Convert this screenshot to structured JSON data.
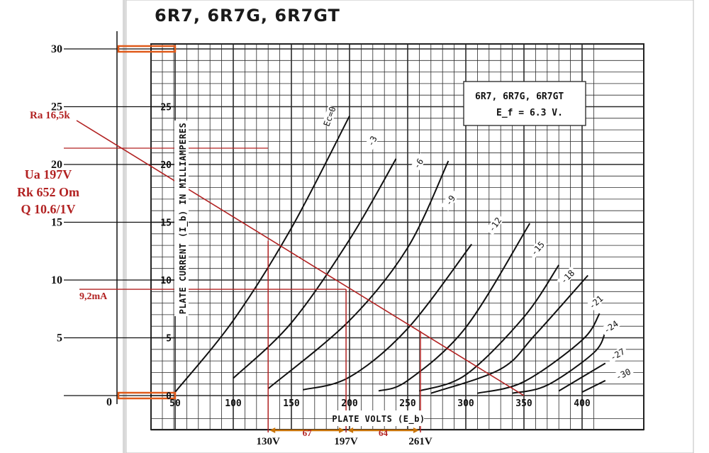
{
  "chart_data": {
    "type": "line",
    "title": "6R7, 6R7G, 6R7GT",
    "xlabel": "PLATE VOLTS (E_b)",
    "ylabel": "PLATE CURRENT (I_b) IN MILLIAMPERES",
    "xlim": [
      50,
      410
    ],
    "ylim": [
      0,
      25
    ],
    "x_ticks": [
      "50",
      "100",
      "150",
      "200",
      "250",
      "300",
      "350",
      "400"
    ],
    "y_ticks": [
      "0",
      "5",
      "10",
      "15",
      "20",
      "25"
    ],
    "grid": true,
    "info_box": {
      "line1": "6R7, 6R7G, 6R7GT",
      "line2": "E_f = 6.3 V."
    },
    "series": [
      {
        "name": "Ec=0",
        "points": [
          [
            50,
            0.3
          ],
          [
            100,
            6.5
          ],
          [
            150,
            14.5
          ],
          [
            200,
            24.2
          ]
        ]
      },
      {
        "name": "-3",
        "points": [
          [
            100,
            1.5
          ],
          [
            150,
            6.3
          ],
          [
            200,
            13.5
          ],
          [
            240,
            20.5
          ]
        ]
      },
      {
        "name": "-6",
        "points": [
          [
            130,
            0.6
          ],
          [
            200,
            6.5
          ],
          [
            250,
            12.8
          ],
          [
            285,
            20.3
          ]
        ]
      },
      {
        "name": "-9",
        "points": [
          [
            160,
            0.5
          ],
          [
            200,
            1.6
          ],
          [
            250,
            5.8
          ],
          [
            305,
            13.1
          ]
        ]
      },
      {
        "name": "-12",
        "points": [
          [
            225,
            0.4
          ],
          [
            250,
            1.3
          ],
          [
            300,
            5.9
          ],
          [
            355,
            14.9
          ]
        ]
      },
      {
        "name": "-15",
        "points": [
          [
            260,
            0.4
          ],
          [
            300,
            1.8
          ],
          [
            350,
            6.8
          ],
          [
            380,
            11.3
          ]
        ]
      },
      {
        "name": "-18",
        "points": [
          [
            270,
            0.2
          ],
          [
            330,
            2.3
          ],
          [
            360,
            5.3
          ],
          [
            405,
            10.4
          ]
        ]
      },
      {
        "name": "-21",
        "points": [
          [
            310,
            0.2
          ],
          [
            350,
            1.2
          ],
          [
            400,
            4.8
          ],
          [
            415,
            7.1
          ]
        ]
      },
      {
        "name": "-24",
        "points": [
          [
            340,
            0.2
          ],
          [
            370,
            0.9
          ],
          [
            410,
            3.7
          ],
          [
            420,
            5.5
          ]
        ]
      },
      {
        "name": "-27",
        "points": [
          [
            380,
            0.4
          ],
          [
            420,
            2.8
          ]
        ]
      },
      {
        "name": "-30",
        "points": [
          [
            400,
            0.3
          ],
          [
            420,
            1.3
          ]
        ]
      }
    ],
    "load_line": {
      "label": "Ra 16,5k",
      "points": [
        [
          50,
          17.2
        ],
        [
          350,
          0
        ]
      ]
    },
    "operating_point": {
      "x": 197,
      "y": 9.2
    },
    "markers": [
      {
        "label": "130V",
        "x": 130,
        "y": 13.4
      },
      {
        "label": "197V",
        "x": 197,
        "y": 9.2
      },
      {
        "label": "261V",
        "x": 261,
        "y": 5.6
      }
    ],
    "spans": [
      {
        "label": "67",
        "from": 130,
        "to": 197
      },
      {
        "label": "64",
        "from": 197,
        "to": 261
      }
    ],
    "annotations": {
      "ua": "Ua 197V",
      "rk": "Rk 652 Om",
      "q": "Q 10.6/1V",
      "current": "9,2mA"
    },
    "left_scale": [
      "0",
      "5",
      "10",
      "15",
      "20",
      "25",
      "30"
    ]
  }
}
